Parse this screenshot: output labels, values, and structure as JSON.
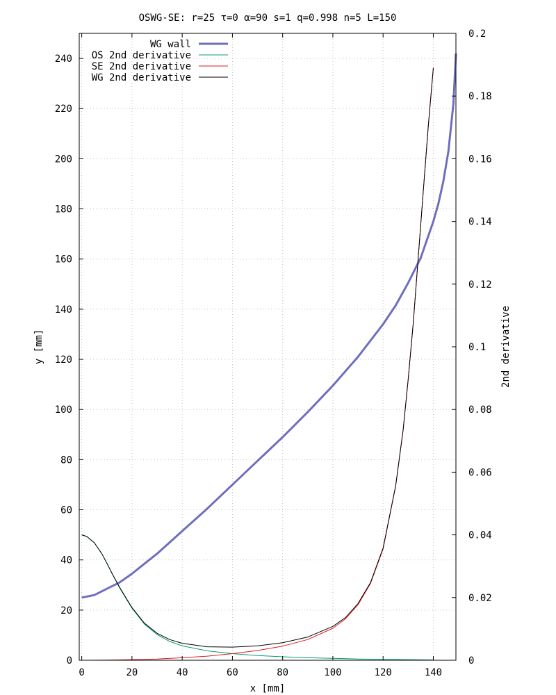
{
  "chart_data": {
    "type": "line",
    "title": "OSWG-SE: r=25 τ=0 α=90 s=1 q=0.998 n=5 L=150",
    "xlabel": "x [mm]",
    "ylabel": "y [mm]",
    "y2label": "2nd derivative",
    "xlim": [
      -1,
      149
    ],
    "ylim": [
      0,
      250
    ],
    "y2lim": [
      0,
      0.2
    ],
    "xticks": [
      0,
      20,
      40,
      60,
      80,
      100,
      120,
      140
    ],
    "yticks": [
      0,
      20,
      40,
      60,
      80,
      100,
      120,
      140,
      160,
      180,
      200,
      220,
      240
    ],
    "y2ticks": [
      "0",
      "0.02",
      "0.04",
      "0.06",
      "0.08",
      "0.1",
      "0.12",
      "0.14",
      "0.16",
      "0.18",
      "0.2"
    ],
    "grid": true,
    "legend_position": "top-left",
    "series": [
      {
        "name": "WG wall",
        "axis": "y",
        "color": "#6e6ebe",
        "x": [
          0,
          5,
          10,
          15,
          20,
          25,
          30,
          40,
          50,
          60,
          70,
          80,
          90,
          100,
          110,
          120,
          125,
          130,
          135,
          140,
          142,
          144,
          146,
          148,
          149
        ],
        "y": [
          25,
          26,
          28.5,
          31,
          34.5,
          38.5,
          42.5,
          51.5,
          60.5,
          70,
          79.5,
          89,
          99,
          109.5,
          121,
          134,
          141.5,
          150.5,
          160.5,
          175,
          182,
          191,
          203,
          222,
          242
        ]
      },
      {
        "name": "OS 2nd derivative",
        "axis": "y2",
        "color": "#009e73",
        "x": [
          0,
          2,
          5,
          8,
          10,
          12,
          15,
          18,
          20,
          25,
          30,
          35,
          40,
          50,
          60,
          70,
          80,
          90,
          100,
          110,
          120,
          130,
          140
        ],
        "y": [
          0.04,
          0.0395,
          0.0375,
          0.034,
          0.031,
          0.0278,
          0.0232,
          0.0192,
          0.0166,
          0.0115,
          0.0082,
          0.006,
          0.0046,
          0.003,
          0.0021,
          0.0015,
          0.0011,
          0.0008,
          0.0006,
          0.0004,
          0.0003,
          0.0002,
          0.0001
        ]
      },
      {
        "name": "SE 2nd derivative",
        "axis": "y2",
        "color": "#e0191c",
        "x": [
          0,
          10,
          20,
          30,
          40,
          50,
          60,
          70,
          80,
          90,
          100,
          105,
          110,
          115,
          120,
          125,
          128,
          130,
          132,
          134,
          136,
          138,
          140
        ],
        "y": [
          0,
          5e-05,
          0.0002,
          0.0004,
          0.0008,
          0.0013,
          0.0021,
          0.0031,
          0.0045,
          0.0066,
          0.0102,
          0.0132,
          0.0177,
          0.0245,
          0.0355,
          0.0555,
          0.0735,
          0.0895,
          0.1075,
          0.1285,
          0.1495,
          0.1705,
          0.189
        ]
      },
      {
        "name": "WG 2nd derivative",
        "axis": "y2",
        "color": "#000000",
        "x": [
          0,
          2,
          5,
          8,
          10,
          12,
          15,
          18,
          20,
          25,
          30,
          35,
          40,
          50,
          60,
          70,
          80,
          90,
          100,
          105,
          110,
          115,
          120,
          125,
          128,
          130,
          132,
          134,
          136,
          138,
          140
        ],
        "y": [
          0.04,
          0.0395,
          0.0375,
          0.034,
          0.031,
          0.0278,
          0.0234,
          0.0194,
          0.0168,
          0.0118,
          0.0086,
          0.0066,
          0.0054,
          0.0043,
          0.0042,
          0.0046,
          0.0056,
          0.0074,
          0.0108,
          0.0136,
          0.0181,
          0.0248,
          0.0358,
          0.0557,
          0.0736,
          0.0896,
          0.1076,
          0.1286,
          0.1496,
          0.1706,
          0.189
        ]
      }
    ]
  }
}
